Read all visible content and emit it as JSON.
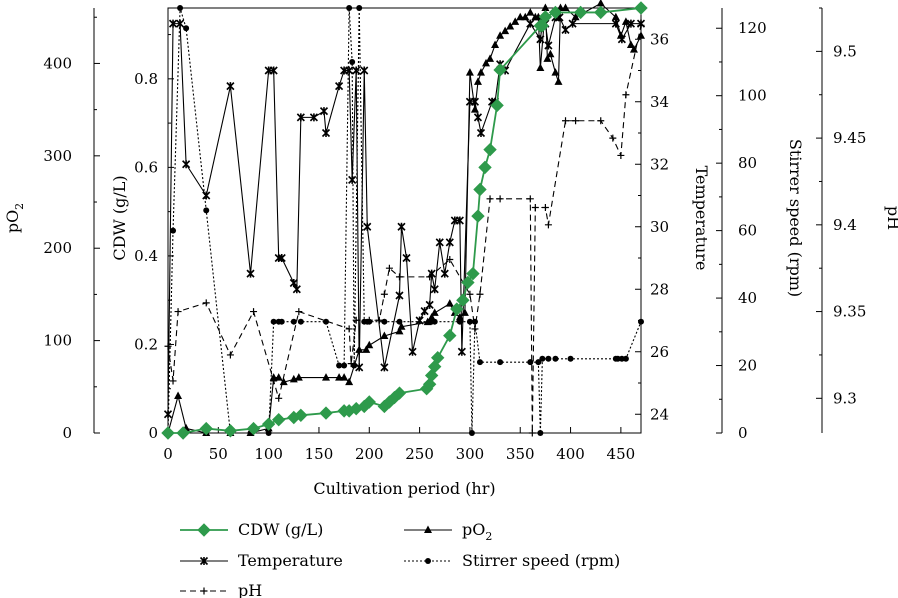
{
  "chart_data": {
    "type": "line",
    "xlabel": "Cultivation period (hr)",
    "xlim": [
      0,
      470
    ],
    "x_ticks": [
      "0",
      "50",
      "100",
      "150",
      "200",
      "250",
      "300",
      "350",
      "400",
      "450"
    ],
    "axes": {
      "po2": {
        "label_main": "pO",
        "label_sub": "2",
        "lim": [
          0,
          460
        ],
        "ticks": [
          "0",
          "100",
          "200",
          "300",
          "400"
        ]
      },
      "cdw": {
        "label": "CDW (g/L)",
        "lim": [
          0,
          0.96
        ],
        "ticks": [
          "0",
          "0.2",
          "0.4",
          "0.6",
          "0.8"
        ]
      },
      "temperature": {
        "label": "Temperature",
        "lim": [
          23.4,
          37.0
        ],
        "ticks": [
          "24",
          "26",
          "28",
          "30",
          "32",
          "34",
          "36"
        ]
      },
      "stirrer": {
        "label": "Stirrer speed (rpm)",
        "lim": [
          0,
          126
        ],
        "ticks": [
          "0",
          "20",
          "40",
          "60",
          "80",
          "100",
          "120"
        ]
      },
      "ph": {
        "label": "pH",
        "lim": [
          9.28,
          9.525
        ],
        "ticks": [
          "9.3",
          "9.35",
          "9.4",
          "9.45",
          "9.5"
        ]
      }
    },
    "legend": {
      "placement": "bottom",
      "entries": [
        {
          "key": "cdw",
          "label": "CDW (g/L)"
        },
        {
          "key": "po2",
          "label_main": "pO",
          "label_sub": "2"
        },
        {
          "key": "temperature",
          "label": "Temperature"
        },
        {
          "key": "stirrer",
          "label": "Stirrer speed (rpm)"
        },
        {
          "key": "ph",
          "label": "pH"
        }
      ]
    },
    "colors": {
      "cdw": "#2e9a4b",
      "other": "#000000"
    },
    "series": [
      {
        "key": "cdw",
        "name": "CDW (g/L)",
        "axis": "cdw",
        "marker": "diamond",
        "style": "solid",
        "x": [
          0,
          15,
          38,
          62,
          85,
          100,
          110,
          125,
          132,
          157,
          175,
          180,
          187,
          195,
          200,
          215,
          220,
          225,
          230,
          257,
          260,
          262,
          265,
          268,
          280,
          287,
          293,
          298,
          303,
          308,
          310,
          315,
          320,
          327,
          330,
          370,
          372,
          375,
          385,
          410,
          430,
          470
        ],
        "y": [
          0,
          0,
          0.01,
          0.005,
          0.01,
          0.02,
          0.03,
          0.035,
          0.04,
          0.045,
          0.05,
          0.05,
          0.055,
          0.06,
          0.07,
          0.06,
          0.07,
          0.08,
          0.09,
          0.1,
          0.11,
          0.13,
          0.15,
          0.17,
          0.22,
          0.28,
          0.3,
          0.34,
          0.36,
          0.49,
          0.55,
          0.6,
          0.64,
          0.74,
          0.82,
          0.92,
          0.92,
          0.94,
          0.95,
          0.95,
          0.95,
          0.96
        ]
      },
      {
        "key": "temperature",
        "name": "Temperature",
        "axis": "temperature",
        "marker": "star",
        "style": "solid",
        "x": [
          0,
          5,
          12,
          18,
          38,
          62,
          82,
          100,
          105,
          110,
          113,
          125,
          128,
          132,
          145,
          155,
          157,
          170,
          175,
          180,
          183,
          187,
          190,
          195,
          198,
          215,
          230,
          232,
          237,
          243,
          250,
          255,
          260,
          262,
          265,
          270,
          275,
          280,
          285,
          290,
          292,
          300,
          305,
          308,
          311,
          322,
          325,
          330,
          335,
          360,
          370,
          372,
          375,
          378,
          385,
          389,
          395,
          402,
          445,
          451,
          460,
          470
        ],
        "y": [
          24,
          36.5,
          36.5,
          32,
          31,
          34.5,
          28.5,
          35,
          35,
          29,
          29,
          28.2,
          28,
          33.5,
          33.5,
          33.7,
          33,
          34.5,
          35,
          35,
          31.5,
          35,
          25.5,
          35,
          30,
          25.5,
          27.8,
          30,
          29,
          26,
          27,
          27.3,
          27.5,
          28.5,
          28,
          29.5,
          28.5,
          29.5,
          30.2,
          30.2,
          26,
          34,
          34,
          33.5,
          33,
          34,
          34,
          35.2,
          35,
          36.5,
          36,
          36.5,
          36.5,
          35.8,
          36.7,
          36.7,
          36.3,
          36.5,
          36.5,
          36,
          36.5,
          36.5
        ]
      },
      {
        "key": "po2",
        "name": "pO2",
        "axis": "po2",
        "marker": "triangle",
        "style": "solid",
        "x": [
          0,
          10,
          18,
          38,
          62,
          82,
          100,
          105,
          110,
          115,
          125,
          130,
          157,
          170,
          175,
          180,
          190,
          197,
          200,
          215,
          230,
          232,
          258,
          262,
          265,
          280,
          285,
          290,
          295,
          300,
          305,
          308,
          311,
          316,
          320,
          325,
          330,
          335,
          340,
          345,
          350,
          355,
          360,
          365,
          368,
          370,
          375,
          377,
          380,
          385,
          388,
          390,
          395,
          405,
          430,
          445,
          450,
          455,
          460,
          463,
          470
        ],
        "y": [
          0,
          40,
          5,
          0,
          0,
          0,
          5,
          60,
          60,
          55,
          58,
          60,
          60,
          60,
          60,
          55,
          90,
          90,
          95,
          105,
          110,
          115,
          120,
          125,
          130,
          140,
          130,
          125,
          130,
          390,
          350,
          380,
          390,
          400,
          405,
          420,
          430,
          435,
          440,
          445,
          450,
          450,
          455,
          450,
          450,
          395,
          460,
          405,
          410,
          390,
          380,
          460,
          460,
          450,
          465,
          450,
          430,
          445,
          420,
          415,
          430
        ]
      },
      {
        "key": "stirrer",
        "name": "Stirrer speed (rpm)",
        "axis": "stirrer",
        "marker": "circle",
        "style": "dotted",
        "x": [
          0,
          5,
          12,
          18,
          38,
          62,
          82,
          100,
          105,
          110,
          113,
          125,
          132,
          157,
          170,
          175,
          180,
          183,
          185,
          190,
          195,
          198,
          200,
          215,
          230,
          262,
          265,
          290,
          300,
          302,
          305,
          310,
          330,
          360,
          368,
          370,
          372,
          378,
          385,
          400,
          445,
          447,
          451,
          455,
          470
        ],
        "y": [
          0,
          60,
          126,
          120,
          66,
          0,
          0,
          0,
          33,
          33,
          33,
          33,
          33,
          33,
          20,
          20,
          126,
          110,
          20,
          126,
          33,
          33,
          33,
          33,
          33,
          33,
          33,
          33,
          33,
          0,
          33,
          21,
          21,
          21,
          21,
          0,
          22,
          22,
          22,
          22,
          22,
          22,
          22,
          22,
          33
        ]
      },
      {
        "key": "ph",
        "name": "pH",
        "axis": "ph",
        "marker": "plus",
        "style": "dashed",
        "x": [
          0,
          5,
          10,
          38,
          62,
          85,
          105,
          110,
          130,
          180,
          182,
          187,
          200,
          210,
          215,
          220,
          230,
          260,
          280,
          300,
          305,
          310,
          320,
          330,
          360,
          362,
          365,
          375,
          378,
          395,
          405,
          430,
          442,
          450,
          455,
          470
        ],
        "y": [
          9.33,
          9.31,
          9.35,
          9.355,
          9.325,
          9.35,
          9.31,
          9.3,
          9.35,
          9.34,
          9.32,
          9.345,
          9.345,
          9.345,
          9.36,
          9.375,
          9.37,
          9.37,
          9.38,
          9.36,
          9.34,
          9.36,
          9.415,
          9.415,
          9.415,
          9.28,
          9.41,
          9.41,
          9.4,
          9.46,
          9.46,
          9.46,
          9.45,
          9.44,
          9.475,
          9.515
        ]
      }
    ]
  }
}
